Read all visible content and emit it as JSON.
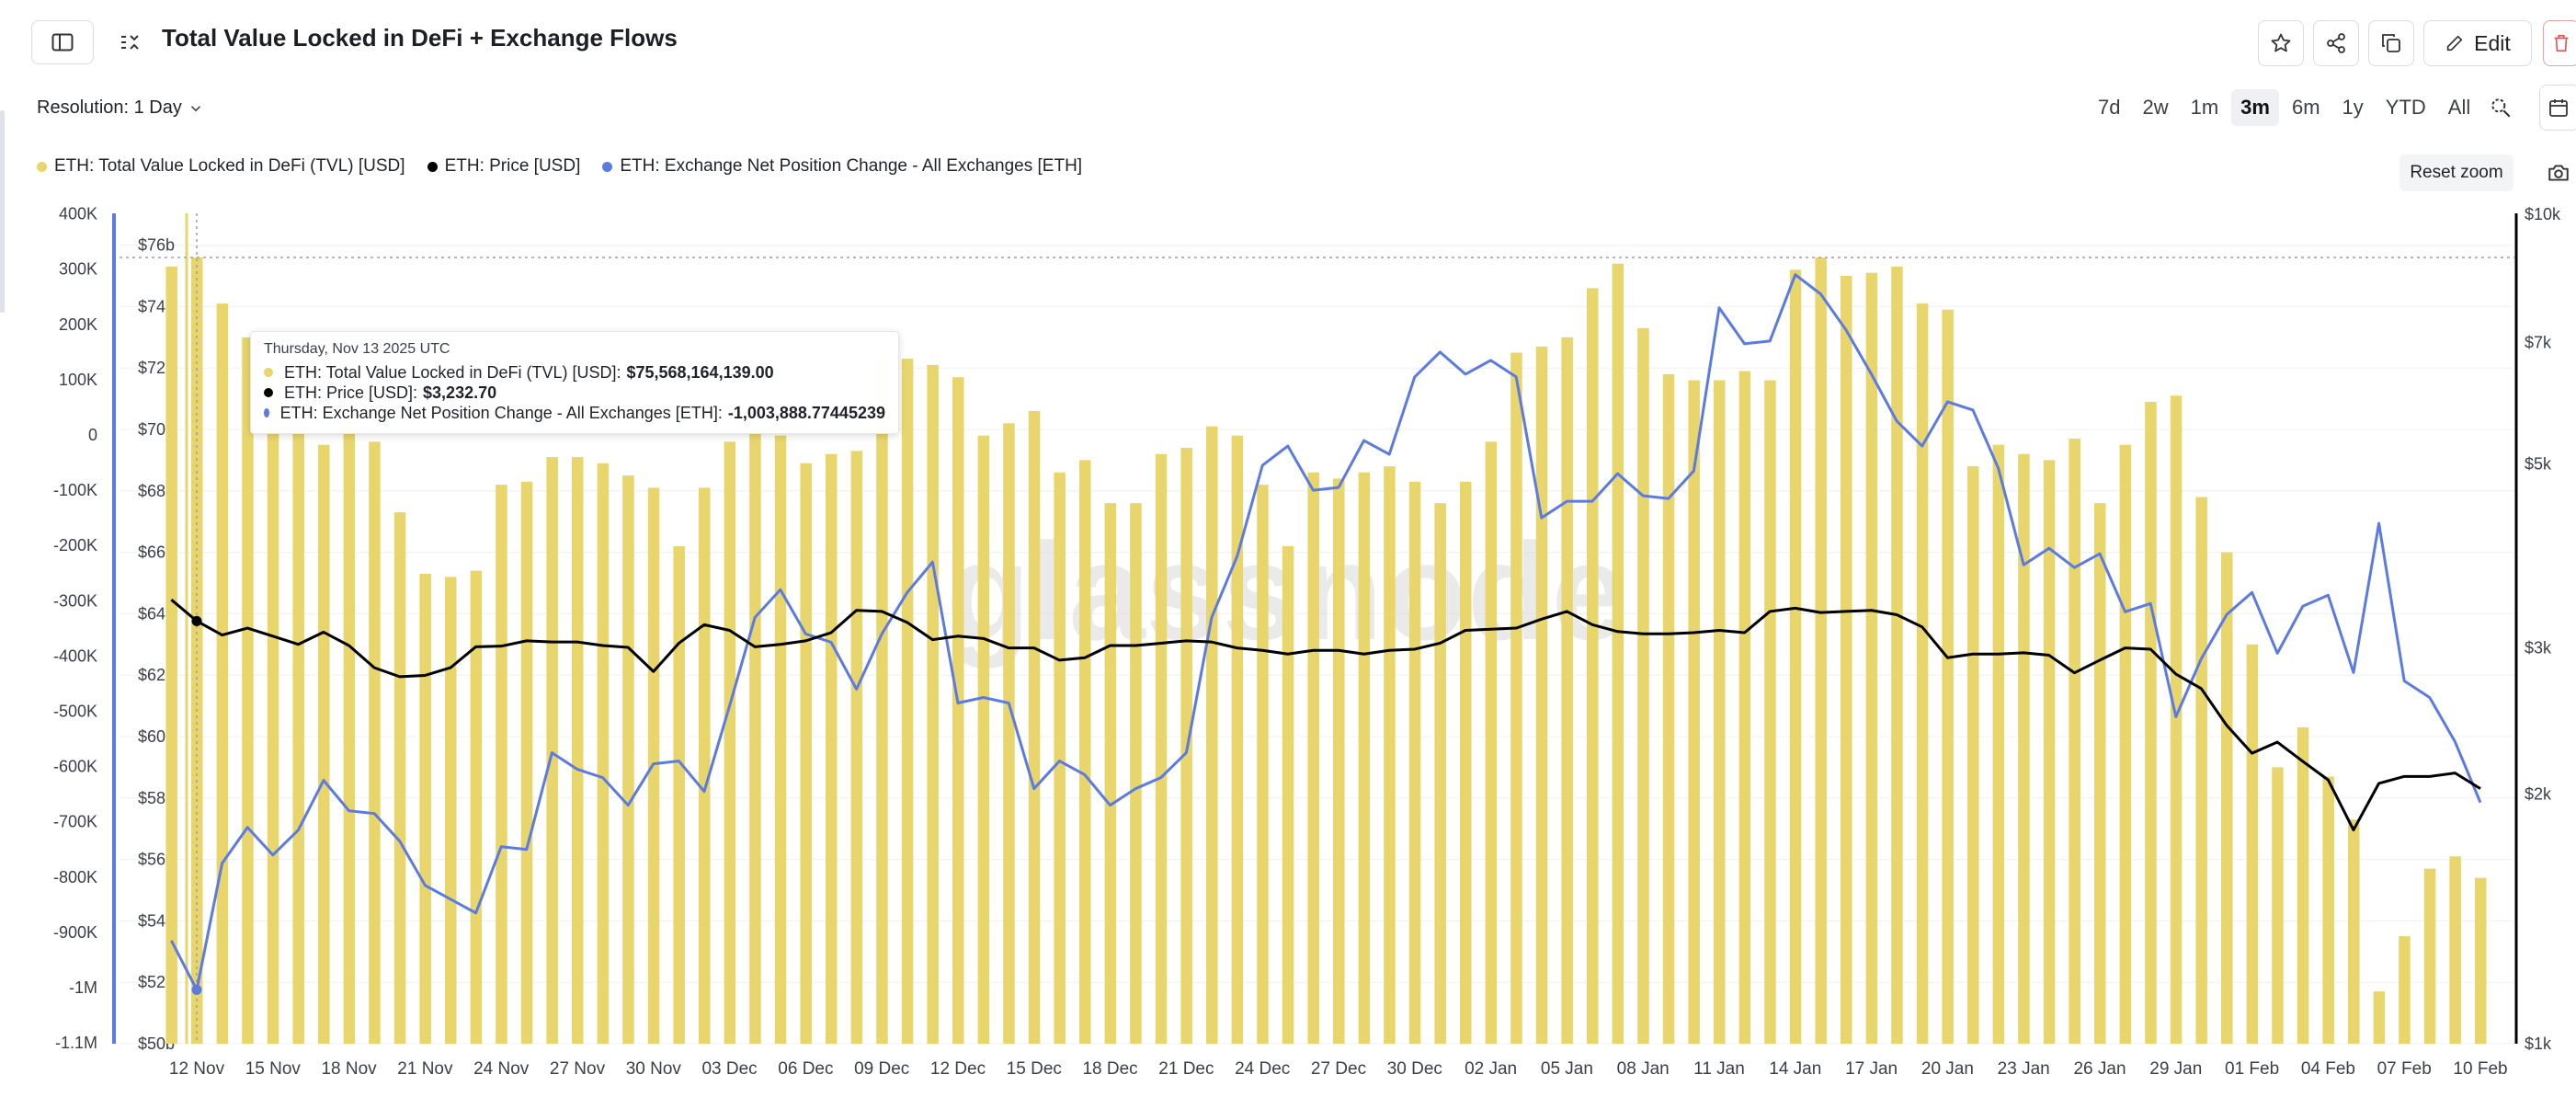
{
  "header": {
    "title": "Total Value Locked in DeFi + Exchange Flows",
    "edit_label": "Edit"
  },
  "toolbar": {
    "resolution_label": "Resolution: 1 Day",
    "ranges": [
      "7d",
      "2w",
      "1m",
      "3m",
      "6m",
      "1y",
      "YTD",
      "All"
    ],
    "active_range": "3m",
    "reset_zoom_label": "Reset zoom"
  },
  "colors": {
    "tvl": "#e8d56b",
    "price": "#000000",
    "flow": "#5b7be3"
  },
  "tooltip": {
    "date": "Thursday, Nov 13 2025 UTC",
    "rows": [
      {
        "label": "ETH: Total Value Locked in DeFi (TVL) [USD]:",
        "value": "$75,568,164,139.00"
      },
      {
        "label": "ETH: Price [USD]:",
        "value": "$3,232.70"
      },
      {
        "label": "ETH: Exchange Net Position Change - All Exchanges [ETH]:",
        "value": "-1,003,888.77445239"
      }
    ]
  },
  "chart_data": {
    "type": "bar",
    "title": "Total Value Locked in DeFi + Exchange Flows",
    "watermark": "glassnode",
    "x": [
      "11 Nov",
      "12 Nov",
      "13 Nov",
      "14 Nov",
      "15 Nov",
      "16 Nov",
      "17 Nov",
      "18 Nov",
      "19 Nov",
      "20 Nov",
      "21 Nov",
      "22 Nov",
      "23 Nov",
      "24 Nov",
      "25 Nov",
      "26 Nov",
      "27 Nov",
      "28 Nov",
      "29 Nov",
      "30 Nov",
      "01 Dec",
      "02 Dec",
      "03 Dec",
      "04 Dec",
      "05 Dec",
      "06 Dec",
      "07 Dec",
      "08 Dec",
      "09 Dec",
      "10 Dec",
      "11 Dec",
      "12 Dec",
      "13 Dec",
      "14 Dec",
      "15 Dec",
      "16 Dec",
      "17 Dec",
      "18 Dec",
      "19 Dec",
      "20 Dec",
      "21 Dec",
      "22 Dec",
      "23 Dec",
      "24 Dec",
      "25 Dec",
      "26 Dec",
      "27 Dec",
      "28 Dec",
      "29 Dec",
      "30 Dec",
      "31 Dec",
      "01 Jan",
      "02 Jan",
      "03 Jan",
      "04 Jan",
      "05 Jan",
      "06 Jan",
      "07 Jan",
      "08 Jan",
      "09 Jan",
      "10 Jan",
      "11 Jan",
      "12 Jan",
      "13 Jan",
      "14 Jan",
      "15 Jan",
      "16 Jan",
      "17 Jan",
      "18 Jan",
      "19 Jan",
      "20 Jan",
      "21 Jan",
      "22 Jan",
      "23 Jan",
      "24 Jan",
      "25 Jan",
      "26 Jan",
      "27 Jan",
      "28 Jan",
      "29 Jan",
      "30 Jan",
      "31 Jan",
      "01 Feb",
      "02 Feb",
      "03 Feb",
      "04 Feb",
      "05 Feb",
      "06 Feb",
      "07 Feb",
      "08 Feb",
      "09 Feb",
      "10 Feb"
    ],
    "x_tick_labels": [
      "12 Nov",
      "15 Nov",
      "18 Nov",
      "21 Nov",
      "24 Nov",
      "27 Nov",
      "30 Nov",
      "03 Dec",
      "06 Dec",
      "09 Dec",
      "12 Dec",
      "15 Dec",
      "18 Dec",
      "21 Dec",
      "24 Dec",
      "27 Dec",
      "30 Dec",
      "02 Jan",
      "05 Jan",
      "08 Jan",
      "11 Jan",
      "14 Jan",
      "17 Jan",
      "20 Jan",
      "23 Jan",
      "26 Jan",
      "29 Jan",
      "01 Feb",
      "04 Feb",
      "07 Feb",
      "10 Feb"
    ],
    "series": [
      {
        "name": "ETH: Total Value Locked in DeFi (TVL) [USD]",
        "axis": "tvl",
        "unit": "USD billions",
        "values": [
          75.3,
          75.6,
          74.1,
          73.0,
          71.4,
          70.4,
          69.5,
          70.6,
          69.6,
          67.3,
          65.3,
          65.2,
          65.4,
          68.2,
          68.3,
          69.1,
          69.1,
          68.9,
          68.5,
          68.1,
          66.2,
          68.1,
          69.6,
          70.0,
          69.8,
          68.9,
          69.2,
          69.3,
          72.4,
          72.3,
          72.1,
          71.7,
          69.8,
          70.2,
          70.6,
          68.6,
          69.0,
          67.6,
          67.6,
          69.2,
          69.4,
          70.1,
          69.8,
          68.2,
          66.2,
          68.6,
          68.4,
          68.6,
          68.8,
          68.3,
          67.6,
          68.3,
          69.6,
          72.5,
          72.7,
          73.0,
          74.6,
          75.4,
          73.3,
          71.8,
          71.6,
          71.6,
          71.9,
          71.6,
          75.2,
          75.6,
          75.0,
          75.1,
          75.3,
          74.1,
          73.9,
          68.8,
          69.5,
          69.2,
          69.0,
          69.7,
          67.6,
          69.5,
          70.9,
          71.1,
          67.8,
          66.0,
          63.0,
          59.0,
          60.3,
          58.7,
          57.3,
          51.7,
          53.5,
          55.7,
          56.1,
          55.4
        ]
      },
      {
        "name": "ETH: Price [USD]",
        "axis": "price",
        "unit": "USD",
        "values": [
          3430,
          3232.7,
          3110,
          3170,
          3100,
          3030,
          3135,
          3020,
          2840,
          2770,
          2780,
          2840,
          3010,
          3015,
          3060,
          3050,
          3050,
          3020,
          3005,
          2810,
          3040,
          3200,
          3150,
          3010,
          3030,
          3060,
          3130,
          3330,
          3320,
          3220,
          3070,
          3100,
          3080,
          3000,
          3000,
          2900,
          2920,
          3020,
          3020,
          3040,
          3060,
          3050,
          3000,
          2980,
          2950,
          2980,
          2980,
          2950,
          2980,
          2990,
          3040,
          3150,
          3160,
          3170,
          3250,
          3320,
          3200,
          3140,
          3120,
          3120,
          3130,
          3150,
          3130,
          3320,
          3350,
          3310,
          3320,
          3330,
          3290,
          3180,
          2920,
          2950,
          2950,
          2960,
          2940,
          2800,
          2900,
          3000,
          2990,
          2790,
          2680,
          2420,
          2240,
          2310,
          2190,
          2080,
          1810,
          2060,
          2100,
          2100,
          2120,
          2030
        ]
      },
      {
        "name": "ETH: Exchange Net Position Change - All Exchanges [ETH]",
        "axis": "flow",
        "unit": "ETH",
        "values": [
          -915000,
          -1003888.77,
          -775000,
          -710000,
          -760000,
          -715000,
          -625000,
          -680000,
          -685000,
          -735000,
          -815000,
          -840000,
          -865000,
          -745000,
          -750000,
          -575000,
          -605000,
          -620000,
          -670000,
          -595000,
          -590000,
          -645000,
          -490000,
          -330000,
          -280000,
          -360000,
          -375000,
          -460000,
          -360000,
          -285000,
          -230000,
          -485000,
          -475000,
          -485000,
          -640000,
          -590000,
          -615000,
          -670000,
          -640000,
          -620000,
          -575000,
          -330000,
          -220000,
          -55000,
          -20000,
          -100000,
          -95000,
          -10000,
          -35000,
          105000,
          150000,
          110000,
          135000,
          105000,
          -150000,
          -120000,
          -120000,
          -70000,
          -110000,
          -115000,
          -65000,
          230000,
          165000,
          170000,
          290000,
          255000,
          190000,
          110000,
          25000,
          -20000,
          60000,
          45000,
          -60000,
          -235000,
          -205000,
          -240000,
          -215000,
          -320000,
          -305000,
          -510000,
          -405000,
          -325000,
          -285000,
          -395000,
          -310000,
          -290000,
          -430000,
          -160000,
          -445000,
          -475000,
          -555000,
          -665000
        ]
      }
    ],
    "axes": {
      "tvl": {
        "ticks": [
          "$50b",
          "$52b",
          "$54b",
          "$56b",
          "$58b",
          "$60b",
          "$62b",
          "$64b",
          "$66b",
          "$68b",
          "$70b",
          "$72b",
          "$74b",
          "$76b"
        ],
        "range": [
          50,
          77.1
        ],
        "unit": "USD billions"
      },
      "flow": {
        "ticks": [
          "400K",
          "300K",
          "200K",
          "100K",
          "0",
          "-100K",
          "-200K",
          "-300K",
          "-400K",
          "-500K",
          "-600K",
          "-700K",
          "-800K",
          "-900K",
          "-1M",
          "-1.1M"
        ],
        "range": [
          -1100000,
          400000
        ],
        "unit": "ETH"
      },
      "price": {
        "ticks": [
          "$10k",
          "$7k",
          "$5k",
          "$3k",
          "$2k",
          "$1k"
        ],
        "scale": "log",
        "range": [
          1000,
          10000
        ],
        "unit": "USD"
      }
    },
    "grid": "horizontal",
    "legend_position": "top-left"
  }
}
